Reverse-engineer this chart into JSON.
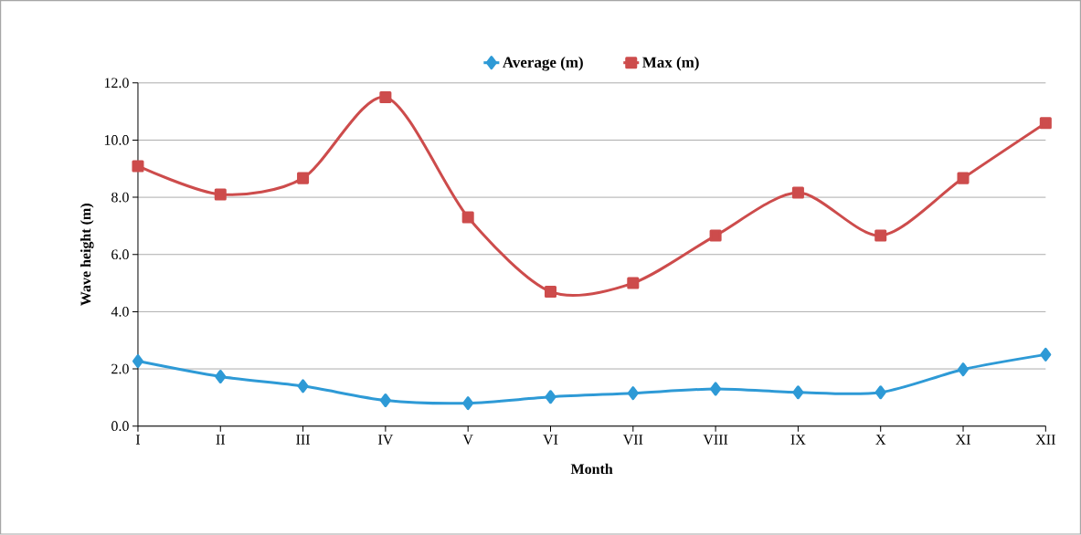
{
  "chart_data": {
    "type": "line",
    "xlabel": "Month",
    "ylabel": "Wave height (m)",
    "categories": [
      "I",
      "II",
      "III",
      "IV",
      "V",
      "VI",
      "VII",
      "VIII",
      "IX",
      "X",
      "XI",
      "XII"
    ],
    "series": [
      {
        "name": "Average (m)",
        "color": "#2e9ad6",
        "marker": "diamond",
        "values": [
          2.27,
          1.73,
          1.4,
          0.9,
          0.8,
          1.02,
          1.15,
          1.3,
          1.18,
          1.18,
          1.98,
          2.5
        ]
      },
      {
        "name": "Max (m)",
        "color": "#cd4c4c",
        "marker": "square",
        "values": [
          9.09,
          8.1,
          8.67,
          11.5,
          7.3,
          4.7,
          5.0,
          6.66,
          8.16,
          6.66,
          8.67,
          10.6
        ]
      }
    ],
    "ylim": [
      0,
      12
    ],
    "yticks": [
      {
        "value": 0,
        "label": "0.0"
      },
      {
        "value": 2,
        "label": "2.0"
      },
      {
        "value": 4,
        "label": "4.0"
      },
      {
        "value": 6,
        "label": "6.0"
      },
      {
        "value": 8,
        "label": "8.0"
      },
      {
        "value": 10,
        "label": "10.0"
      },
      {
        "value": 12,
        "label": "12.0"
      }
    ],
    "grid": "y",
    "legend": "top"
  }
}
